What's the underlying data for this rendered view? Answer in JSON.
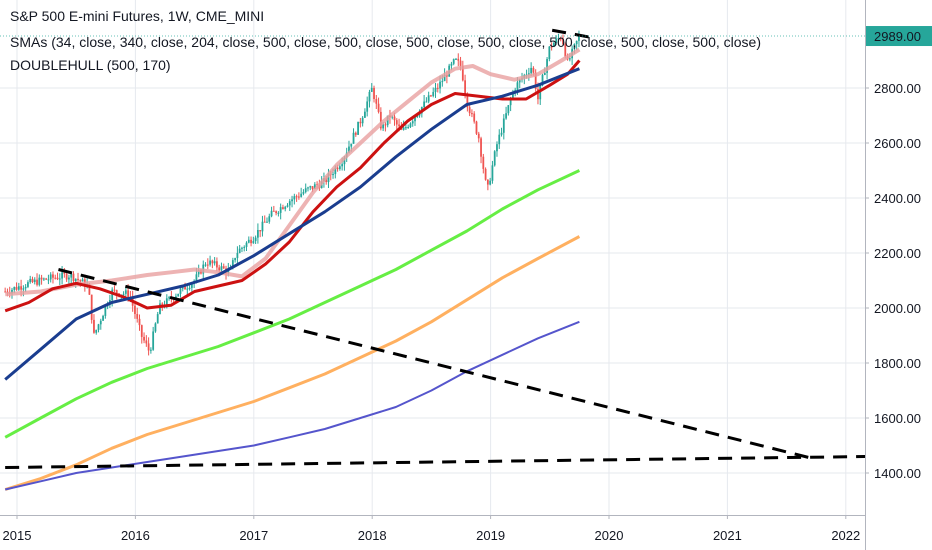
{
  "chart_data": {
    "type": "line",
    "title": "S&P 500 E-mini Futures, 1W, CME_MINI",
    "indicators": [
      "SMAs (34, close, 340, close, 204, close, 500, close, 500, close, 500, close, 500, close, 500, close, 500, close, 500, close)",
      "DOUBLEHULL (500, 170)"
    ],
    "x_axis": {
      "ticks": [
        "2015",
        "2016",
        "2017",
        "2018",
        "2019",
        "2020",
        "2021",
        "2022"
      ]
    },
    "y_axis": {
      "position": "right",
      "range": [
        1300,
        3060
      ],
      "ticks": [
        "1400.00",
        "1600.00",
        "1800.00",
        "2000.00",
        "2200.00",
        "2400.00",
        "2600.00",
        "2800.00"
      ]
    },
    "last_price": {
      "label": "2989.00",
      "value": 2989,
      "color": "#26a69a"
    },
    "candles": {
      "up_color": "#26a69a",
      "down_color": "#ef5350",
      "close_path": [
        [
          2014.9,
          2060
        ],
        [
          2015.1,
          2090
        ],
        [
          2015.3,
          2110
        ],
        [
          2015.45,
          2120
        ],
        [
          2015.6,
          2080
        ],
        [
          2015.65,
          1900
        ],
        [
          2015.8,
          2060
        ],
        [
          2015.95,
          2050
        ],
        [
          2016.05,
          1900
        ],
        [
          2016.12,
          1840
        ],
        [
          2016.2,
          2000
        ],
        [
          2016.4,
          2070
        ],
        [
          2016.5,
          2100
        ],
        [
          2016.6,
          2170
        ],
        [
          2016.8,
          2130
        ],
        [
          2016.85,
          2200
        ],
        [
          2017.0,
          2260
        ],
        [
          2017.15,
          2340
        ],
        [
          2017.3,
          2390
        ],
        [
          2017.45,
          2430
        ],
        [
          2017.6,
          2460
        ],
        [
          2017.75,
          2540
        ],
        [
          2017.9,
          2680
        ],
        [
          2018.0,
          2800
        ],
        [
          2018.08,
          2650
        ],
        [
          2018.15,
          2700
        ],
        [
          2018.25,
          2640
        ],
        [
          2018.4,
          2720
        ],
        [
          2018.55,
          2800
        ],
        [
          2018.7,
          2900
        ],
        [
          2018.75,
          2880
        ],
        [
          2018.8,
          2750
        ],
        [
          2018.9,
          2620
        ],
        [
          2018.97,
          2420
        ],
        [
          2019.05,
          2590
        ],
        [
          2019.2,
          2800
        ],
        [
          2019.35,
          2880
        ],
        [
          2019.4,
          2760
        ],
        [
          2019.5,
          2950
        ],
        [
          2019.6,
          2990
        ],
        [
          2019.65,
          2890
        ],
        [
          2019.75,
          2989
        ]
      ]
    },
    "series": [
      {
        "color": "#e8a0a0",
        "points": [
          [
            2014.9,
            2050
          ],
          [
            2015.2,
            2060
          ],
          [
            2015.5,
            2085
          ],
          [
            2015.8,
            2100
          ],
          [
            2016.1,
            2120
          ],
          [
            2016.3,
            2130
          ],
          [
            2016.5,
            2140
          ],
          [
            2016.7,
            2130
          ],
          [
            2016.9,
            2115
          ],
          [
            2017.1,
            2180
          ],
          [
            2017.3,
            2300
          ],
          [
            2017.5,
            2420
          ],
          [
            2017.7,
            2520
          ],
          [
            2017.9,
            2600
          ],
          [
            2018.1,
            2680
          ],
          [
            2018.3,
            2750
          ],
          [
            2018.5,
            2820
          ],
          [
            2018.7,
            2870
          ],
          [
            2018.85,
            2880
          ],
          [
            2019.0,
            2850
          ],
          [
            2019.2,
            2830
          ],
          [
            2019.4,
            2850
          ],
          [
            2019.6,
            2900
          ],
          [
            2019.75,
            2940
          ]
        ]
      },
      {
        "color": "#cc1111",
        "points": [
          [
            2014.9,
            1990
          ],
          [
            2015.1,
            2020
          ],
          [
            2015.3,
            2070
          ],
          [
            2015.5,
            2090
          ],
          [
            2015.7,
            2070
          ],
          [
            2015.9,
            2040
          ],
          [
            2016.1,
            2000
          ],
          [
            2016.3,
            2010
          ],
          [
            2016.5,
            2060
          ],
          [
            2016.7,
            2080
          ],
          [
            2016.9,
            2100
          ],
          [
            2017.1,
            2160
          ],
          [
            2017.3,
            2240
          ],
          [
            2017.5,
            2350
          ],
          [
            2017.7,
            2440
          ],
          [
            2017.9,
            2510
          ],
          [
            2018.1,
            2600
          ],
          [
            2018.3,
            2680
          ],
          [
            2018.5,
            2740
          ],
          [
            2018.7,
            2780
          ],
          [
            2018.9,
            2770
          ],
          [
            2019.1,
            2760
          ],
          [
            2019.3,
            2760
          ],
          [
            2019.5,
            2810
          ],
          [
            2019.65,
            2850
          ],
          [
            2019.75,
            2900
          ]
        ]
      },
      {
        "color": "#1a3d8f",
        "points": [
          [
            2014.9,
            1740
          ],
          [
            2015.2,
            1850
          ],
          [
            2015.5,
            1960
          ],
          [
            2015.8,
            2020
          ],
          [
            2016.1,
            2050
          ],
          [
            2016.4,
            2080
          ],
          [
            2016.7,
            2120
          ],
          [
            2017.0,
            2190
          ],
          [
            2017.3,
            2270
          ],
          [
            2017.6,
            2350
          ],
          [
            2017.9,
            2440
          ],
          [
            2018.2,
            2550
          ],
          [
            2018.5,
            2650
          ],
          [
            2018.8,
            2740
          ],
          [
            2019.1,
            2770
          ],
          [
            2019.4,
            2810
          ],
          [
            2019.75,
            2870
          ]
        ]
      },
      {
        "color": "#66ee44",
        "points": [
          [
            2014.9,
            1530
          ],
          [
            2015.2,
            1600
          ],
          [
            2015.5,
            1670
          ],
          [
            2015.8,
            1730
          ],
          [
            2016.1,
            1780
          ],
          [
            2016.4,
            1820
          ],
          [
            2016.7,
            1860
          ],
          [
            2017.0,
            1910
          ],
          [
            2017.3,
            1960
          ],
          [
            2017.6,
            2020
          ],
          [
            2017.9,
            2080
          ],
          [
            2018.2,
            2140
          ],
          [
            2018.5,
            2210
          ],
          [
            2018.8,
            2280
          ],
          [
            2019.1,
            2360
          ],
          [
            2019.4,
            2430
          ],
          [
            2019.75,
            2500
          ]
        ]
      },
      {
        "color": "#ffb060",
        "points": [
          [
            2014.9,
            1340
          ],
          [
            2015.2,
            1380
          ],
          [
            2015.5,
            1430
          ],
          [
            2015.8,
            1490
          ],
          [
            2016.1,
            1540
          ],
          [
            2016.4,
            1580
          ],
          [
            2016.7,
            1620
          ],
          [
            2017.0,
            1660
          ],
          [
            2017.3,
            1710
          ],
          [
            2017.6,
            1760
          ],
          [
            2017.9,
            1820
          ],
          [
            2018.2,
            1880
          ],
          [
            2018.5,
            1950
          ],
          [
            2018.8,
            2030
          ],
          [
            2019.1,
            2110
          ],
          [
            2019.4,
            2180
          ],
          [
            2019.75,
            2260
          ]
        ]
      },
      {
        "color": "#5555cc",
        "points": [
          [
            2014.9,
            1340
          ],
          [
            2015.2,
            1370
          ],
          [
            2015.5,
            1400
          ],
          [
            2015.8,
            1420
          ],
          [
            2016.1,
            1440
          ],
          [
            2016.4,
            1460
          ],
          [
            2016.7,
            1480
          ],
          [
            2017.0,
            1500
          ],
          [
            2017.3,
            1530
          ],
          [
            2017.6,
            1560
          ],
          [
            2017.9,
            1600
          ],
          [
            2018.2,
            1640
          ],
          [
            2018.5,
            1700
          ],
          [
            2018.8,
            1770
          ],
          [
            2019.1,
            1830
          ],
          [
            2019.4,
            1890
          ],
          [
            2019.75,
            1950
          ]
        ]
      }
    ],
    "trend_lines": [
      {
        "style": "dashed",
        "color": "#000000",
        "points": [
          [
            2015.35,
            2140
          ],
          [
            2021.7,
            1455
          ]
        ]
      },
      {
        "style": "dashed",
        "color": "#000000",
        "points": [
          [
            2014.9,
            1420
          ],
          [
            2022.2,
            1460
          ]
        ]
      },
      {
        "style": "dashed",
        "color": "#000000",
        "points": [
          [
            2019.52,
            3010
          ],
          [
            2019.9,
            2980
          ]
        ]
      }
    ]
  }
}
